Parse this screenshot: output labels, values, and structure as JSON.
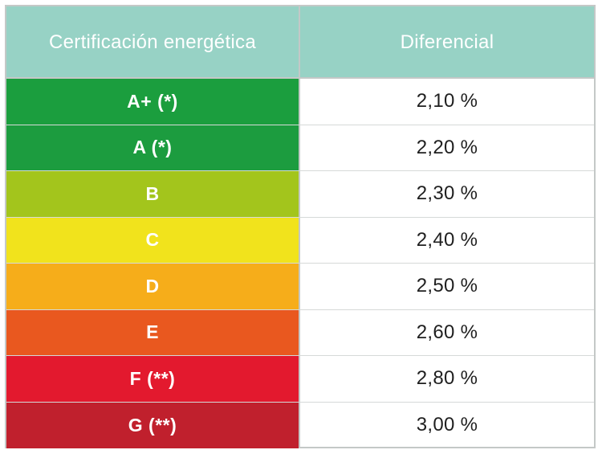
{
  "table": {
    "header": {
      "col1": "Certificación energética",
      "col2": "Diferencial"
    },
    "rows": [
      {
        "grade": "A+ (*)",
        "value": "2,10 %",
        "color": "#1b9e3e"
      },
      {
        "grade": "A (*)",
        "value": "2,20 %",
        "color": "#1c9c3f"
      },
      {
        "grade": "B",
        "value": "2,30 %",
        "color": "#a3c51c"
      },
      {
        "grade": "C",
        "value": "2,40 %",
        "color": "#f1e31c"
      },
      {
        "grade": "D",
        "value": "2,50 %",
        "color": "#f6ad1a"
      },
      {
        "grade": "E",
        "value": "2,60 %",
        "color": "#e9581f"
      },
      {
        "grade": "F (**)",
        "value": "2,80 %",
        "color": "#e3192e"
      },
      {
        "grade": "G (**)",
        "value": "3,00 %",
        "color": "#c0202d"
      }
    ],
    "header_color": "#97d2c5",
    "border_color": "#c4c8c7"
  }
}
